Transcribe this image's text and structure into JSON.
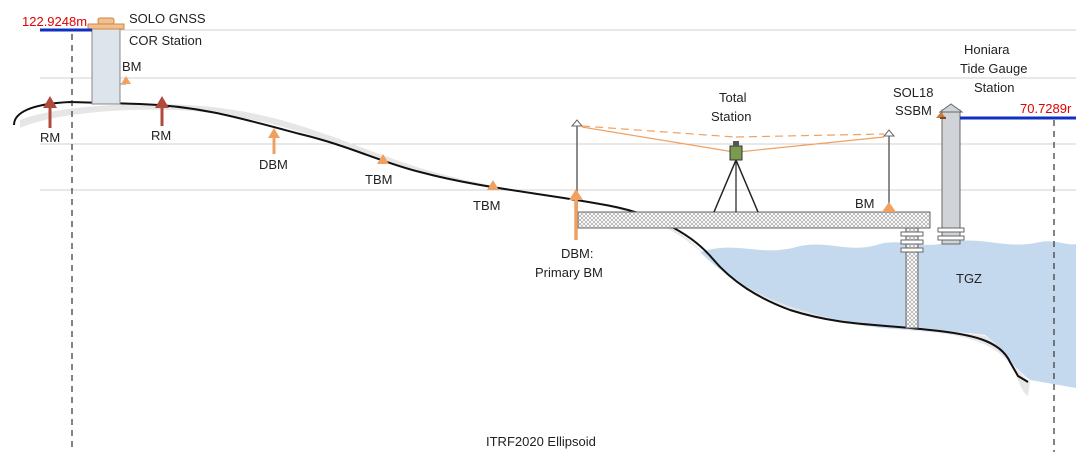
{
  "labels": {
    "height_left": "122.9248m",
    "height_right": "70.7289r",
    "gnss_line1": "SOLO GNSS",
    "gnss_line2": "COR Station",
    "bm_gnss": "BM",
    "rm_1": "RM",
    "rm_2": "RM",
    "dbm_1": "DBM",
    "tbm_1": "TBM",
    "tbm_2": "TBM",
    "dbm_primary_line1": "DBM:",
    "dbm_primary_line2": "Primary BM",
    "total_station_line1": "Total",
    "total_station_line2": "Station",
    "bm_wharf": "BM",
    "sol18_line1": "SOL18",
    "sol18_line2": "SSBM",
    "tide_line1": "Honiara",
    "tide_line2": "Tide Gauge",
    "tide_line3": "Station",
    "tgz": "TGZ",
    "ellipsoid": "ITRF2020 Ellipsoid"
  },
  "colors": {
    "ground_line": "#111111",
    "ground_shadow": "#e6e6e6",
    "water": "#c5d9ee",
    "arrow_red": "#b04a3c",
    "arrow_orange": "#f0a060",
    "height_line": "#1030c0",
    "height_text": "#e00000",
    "guide_line": "#d0d0d0",
    "sight_line": "#f0a060"
  }
}
